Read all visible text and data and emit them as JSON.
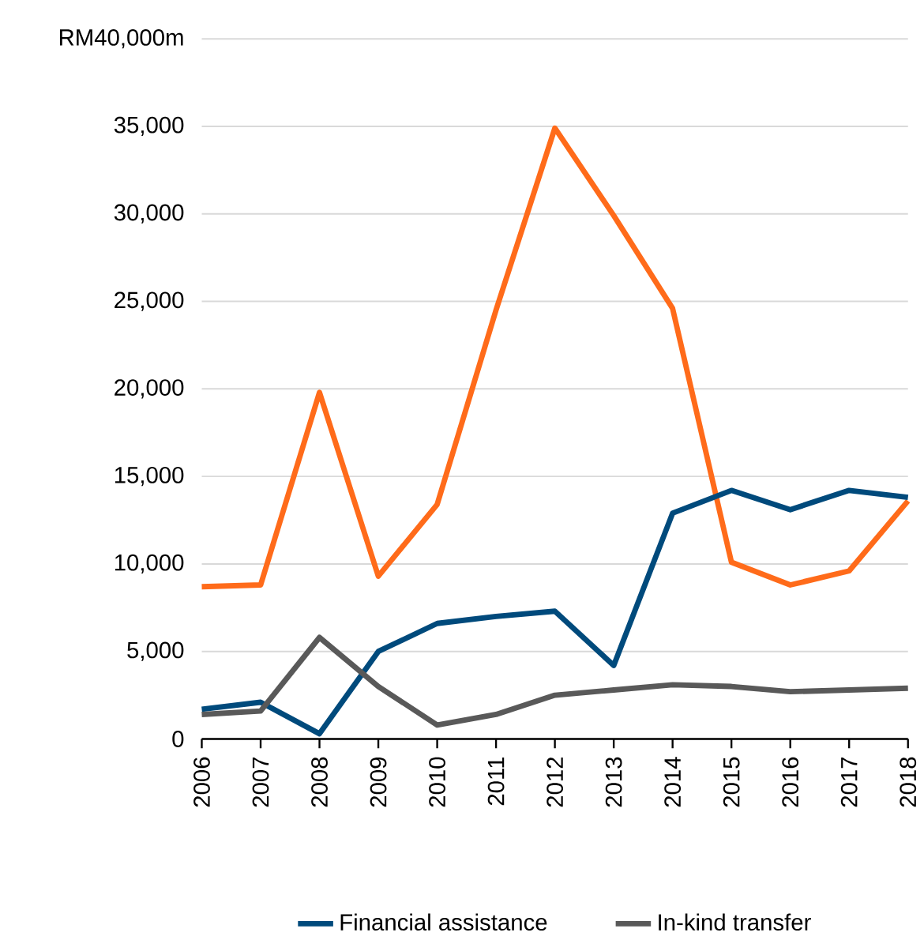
{
  "chart_data": {
    "type": "line",
    "categories": [
      "2006",
      "2007",
      "2008",
      "2009",
      "2010",
      "2011",
      "2012",
      "2013",
      "2014",
      "2015",
      "2016",
      "2017",
      "2018"
    ],
    "series": [
      {
        "color": "#ff6b1a",
        "values": [
          8700,
          8800,
          19800,
          9300,
          13400,
          24500,
          34900,
          29900,
          24600,
          10100,
          8800,
          9600,
          13600
        ]
      },
      {
        "name": "Financial assistance",
        "color": "#004a7c",
        "values": [
          1700,
          2100,
          300,
          5000,
          6600,
          7000,
          7300,
          4200,
          12900,
          14200,
          13100,
          14200,
          13800
        ]
      },
      {
        "name": "In-kind transfer",
        "color": "#595959",
        "values": [
          1400,
          1600,
          5800,
          3000,
          800,
          1400,
          2500,
          2800,
          3100,
          3000,
          2700,
          2800,
          2900
        ]
      }
    ],
    "ylim": [
      0,
      40000
    ],
    "yticks": [
      0,
      {
        "value": 5000,
        "label": "5,000"
      },
      {
        "value": 10000,
        "label": "10,000"
      },
      {
        "value": 15000,
        "label": "15,000"
      },
      {
        "value": 20000,
        "label": "20,000"
      },
      {
        "value": 25000,
        "label": "25,000"
      },
      {
        "value": 30000,
        "label": "30,000"
      },
      {
        "value": 35000,
        "label": "35,000"
      },
      {
        "value": 40000,
        "label": "RM40,000m"
      }
    ],
    "grid": "y",
    "legend": "bottom",
    "marker": "none",
    "line_style": "solid"
  }
}
